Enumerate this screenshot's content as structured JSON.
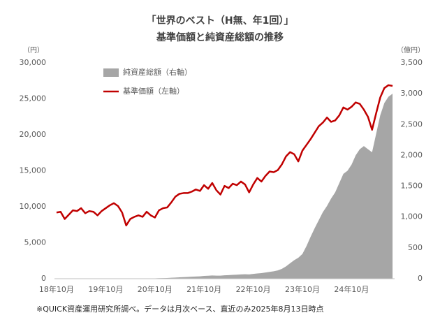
{
  "chart_data": {
    "type": "line",
    "title": "「世界のベスト（H無、年1回）」",
    "subtitle": "基準価額と純資産総額の推移",
    "ylabel": "（円）",
    "y2label": "（億円）",
    "note": "※QUICK資産運用研究所調べ。データは月次ベース、直近のみ2025年8月13日時点",
    "categories": [
      "18年10月",
      null,
      null,
      null,
      null,
      null,
      null,
      null,
      null,
      null,
      null,
      null,
      "19年10月",
      null,
      null,
      null,
      null,
      null,
      null,
      null,
      null,
      null,
      null,
      null,
      "20年10月",
      null,
      null,
      null,
      null,
      null,
      null,
      null,
      null,
      null,
      null,
      null,
      "21年10月",
      null,
      null,
      null,
      null,
      null,
      null,
      null,
      null,
      null,
      null,
      null,
      "22年10月",
      null,
      null,
      null,
      null,
      null,
      null,
      null,
      null,
      null,
      null,
      null,
      "23年10月",
      null,
      null,
      null,
      null,
      null,
      null,
      null,
      null,
      null,
      null,
      null,
      "24年10月",
      null,
      null,
      null,
      null,
      null,
      null,
      null,
      null,
      null,
      null
    ],
    "series": [
      {
        "name": "純資産総額（右軸）",
        "color": "#a6a6a6",
        "type": "area",
        "axis": "y2",
        "values": [
          0,
          0,
          0,
          0,
          0,
          0,
          0,
          0,
          0,
          0,
          0,
          0,
          0,
          0,
          0,
          0,
          0,
          0,
          0,
          0,
          0,
          0,
          0,
          0,
          5,
          8,
          10,
          12,
          15,
          18,
          22,
          25,
          28,
          32,
          35,
          38,
          45,
          48,
          52,
          50,
          50,
          55,
          58,
          62,
          65,
          70,
          72,
          70,
          78,
          85,
          90,
          100,
          110,
          120,
          135,
          160,
          200,
          250,
          300,
          340,
          400,
          530,
          680,
          820,
          950,
          1080,
          1180,
          1300,
          1400,
          1550,
          1700,
          1750,
          1850,
          2000,
          2100,
          2150,
          2100,
          2050,
          2350,
          2650,
          2850,
          2950,
          3000
        ]
      },
      {
        "name": "基準価額（左軸）",
        "color": "#c00000",
        "type": "line",
        "values": [
          9200,
          9300,
          8300,
          8900,
          9500,
          9400,
          9800,
          9100,
          9400,
          9300,
          8800,
          9400,
          9800,
          10200,
          10500,
          10100,
          9200,
          7400,
          8300,
          8600,
          8800,
          8600,
          9300,
          8800,
          8500,
          9500,
          9800,
          9900,
          10600,
          11400,
          11800,
          11900,
          11900,
          12100,
          12400,
          12200,
          13000,
          12500,
          13300,
          12300,
          11700,
          12900,
          12600,
          13200,
          13000,
          13500,
          13100,
          12000,
          13100,
          14000,
          13500,
          14300,
          14900,
          14800,
          15100,
          15900,
          17000,
          17600,
          17300,
          16300,
          17800,
          18600,
          19400,
          20300,
          21200,
          21700,
          22400,
          21800,
          22000,
          22700,
          23800,
          23500,
          23900,
          24500,
          24300,
          23500,
          22500,
          20700,
          23000,
          25200,
          26500,
          26900,
          26800
        ]
      }
    ],
    "ylim": [
      0,
      30000
    ],
    "yticks": [
      0,
      {
        "value": 5000,
        "label": "5,000"
      },
      {
        "value": 10000,
        "label": "10,000"
      },
      {
        "value": 15000,
        "label": "15,000"
      },
      {
        "value": 20000,
        "label": "20,000"
      },
      {
        "value": 25000,
        "label": "25,000"
      },
      {
        "value": 30000,
        "label": "30,000"
      }
    ],
    "y2lim": [
      0,
      3500
    ],
    "y2ticks": [
      0,
      500,
      {
        "value": 1000,
        "label": "1,000"
      },
      {
        "value": 1500,
        "label": "1,500"
      },
      {
        "value": 2000,
        "label": "2,000"
      },
      {
        "value": 2500,
        "label": "2,500"
      },
      {
        "value": 3000,
        "label": "3,000"
      },
      {
        "value": 3500,
        "label": "3,500"
      }
    ],
    "grid": false
  }
}
